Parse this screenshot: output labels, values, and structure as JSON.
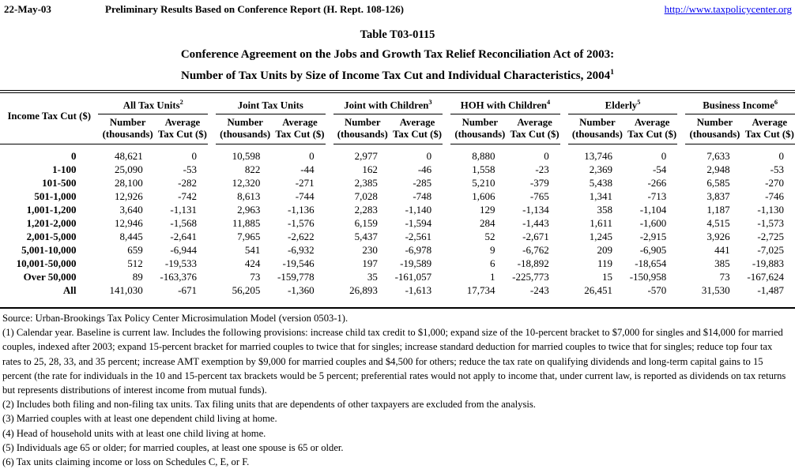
{
  "colors": {
    "link_blue": "#0000EE",
    "text": "#000000"
  },
  "meta_bar": {
    "date": "22-May-03",
    "report_label": "Preliminary Results Based on Conference Report (H. Rept. 108-126)",
    "link": "http://www.taxpolicycenter.org"
  },
  "title": {
    "line1": "Table T03-0115",
    "line2": "Conference Agreement on the Jobs and Growth Tax Relief Reconciliation Act of 2003:",
    "line3": "Number of Tax Units by Size of Income Tax Cut and Individual Characteristics, 2004",
    "line3_superscript": "1"
  },
  "table": {
    "row_header_label": "Income Tax Cut ($)",
    "groups": [
      {
        "label": "All Tax Units",
        "superscript": "2"
      },
      {
        "label": "Joint Tax Units",
        "superscript": ""
      },
      {
        "label": "Joint with Children",
        "superscript": "3"
      },
      {
        "label": "HOH with Children",
        "superscript": "4"
      },
      {
        "label": "Elderly",
        "superscript": "5"
      },
      {
        "label": "Business Income",
        "superscript": "6"
      }
    ],
    "sub_headers": {
      "number_line1": "Number",
      "number_line2": "(thousands)",
      "average_line1": "Average",
      "average_line2": "Tax Cut ($)"
    },
    "rows": [
      {
        "label": "0",
        "values": [
          "48,621",
          "0",
          "10,598",
          "0",
          "2,977",
          "0",
          "8,880",
          "0",
          "13,746",
          "0",
          "7,633",
          "0"
        ]
      },
      {
        "label": "1-100",
        "values": [
          "25,090",
          "-53",
          "822",
          "-44",
          "162",
          "-46",
          "1,558",
          "-23",
          "2,369",
          "-54",
          "2,948",
          "-53"
        ]
      },
      {
        "label": "101-500",
        "values": [
          "28,100",
          "-282",
          "12,320",
          "-271",
          "2,385",
          "-285",
          "5,210",
          "-379",
          "5,438",
          "-266",
          "6,585",
          "-270"
        ]
      },
      {
        "label": "501-1,000",
        "values": [
          "12,926",
          "-742",
          "8,613",
          "-744",
          "7,028",
          "-748",
          "1,606",
          "-765",
          "1,341",
          "-713",
          "3,837",
          "-746"
        ]
      },
      {
        "label": "1,001-1,200",
        "values": [
          "3,640",
          "-1,131",
          "2,963",
          "-1,136",
          "2,283",
          "-1,140",
          "129",
          "-1,134",
          "358",
          "-1,104",
          "1,187",
          "-1,130"
        ]
      },
      {
        "label": "1,201-2,000",
        "values": [
          "12,946",
          "-1,568",
          "11,885",
          "-1,576",
          "6,159",
          "-1,594",
          "284",
          "-1,443",
          "1,611",
          "-1,600",
          "4,515",
          "-1,573"
        ]
      },
      {
        "label": "2,001-5,000",
        "values": [
          "8,445",
          "-2,641",
          "7,965",
          "-2,622",
          "5,437",
          "-2,561",
          "52",
          "-2,671",
          "1,245",
          "-2,915",
          "3,926",
          "-2,725"
        ]
      },
      {
        "label": "5,001-10,000",
        "values": [
          "659",
          "-6,944",
          "541",
          "-6,932",
          "230",
          "-6,978",
          "9",
          "-6,762",
          "209",
          "-6,905",
          "441",
          "-7,025"
        ]
      },
      {
        "label": "10,001-50,000",
        "values": [
          "512",
          "-19,533",
          "424",
          "-19,546",
          "197",
          "-19,589",
          "6",
          "-18,892",
          "119",
          "-18,654",
          "385",
          "-19,883"
        ]
      },
      {
        "label": "Over 50,000",
        "values": [
          "89",
          "-163,376",
          "73",
          "-159,778",
          "35",
          "-161,057",
          "1",
          "-225,773",
          "15",
          "-150,958",
          "73",
          "-167,624"
        ]
      },
      {
        "label": "All",
        "values": [
          "141,030",
          "-671",
          "56,205",
          "-1,360",
          "26,893",
          "-1,613",
          "17,734",
          "-243",
          "26,451",
          "-570",
          "31,530",
          "-1,487"
        ]
      }
    ]
  },
  "footnotes": [
    "Source: Urban-Brookings Tax Policy Center Microsimulation Model (version 0503-1).",
    "(1) Calendar year. Baseline is current law. Includes the following provisions: increase child tax credit to $1,000; expand size of the 10-percent bracket to $7,000 for singles and $14,000 for married couples, indexed after 2003; expand 15-percent bracket for married couples to twice that for singles; increase standard deduction for married couples to twice that for singles; reduce top four tax rates to 25, 28, 33, and 35 percent; increase AMT exemption by $9,000 for married couples and $4,500 for others; reduce the tax rate on qualifying dividends and long-term capital gains to 15 percent (the rate for individuals in the 10 and 15-percent tax brackets would be 5 percent; preferential rates would not apply to income that, under current law, is reported as dividends on tax returns but represents distributions of interest income from mutual funds).",
    "(2) Includes both filing and non-filing tax units.  Tax filing units that are dependents of other taxpayers are excluded from the analysis.",
    "(3) Married couples with at least one dependent child living at home.",
    "(4) Head of household units with at least one child living at home.",
    "(5) Individuals age 65 or older; for married couples, at least one spouse is 65 or older.",
    "(6) Tax units claiming income or loss on Schedules C, E, or F."
  ]
}
